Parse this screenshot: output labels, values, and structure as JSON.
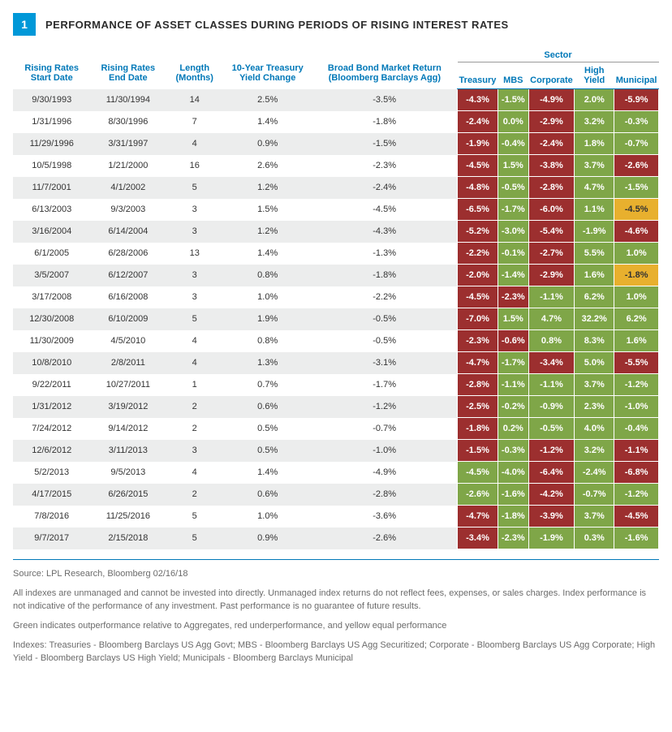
{
  "figure_number": "1",
  "title": "PERFORMANCE OF ASSET CLASSES DURING PERIODS OF RISING INTEREST RATES",
  "colors": {
    "accent": "#0098d8",
    "header_text": "#0078b8",
    "row_alt": "#eceded",
    "neg": "#9c2f2f",
    "pos": "#7fa648",
    "equal": "#e8b02e",
    "footnote": "#6b6b6b"
  },
  "headers": {
    "start": "Rising Rates Start Date",
    "end": "Rising Rates End Date",
    "length": "Length (Months)",
    "yield_change": "10-Year Treasury Yield Change",
    "bond_return": "Broad Bond Market Return (Bloomberg Barclays Agg)",
    "sector_group": "Sector",
    "sectors": [
      "Treasury",
      "MBS",
      "Corporate",
      "High Yield",
      "Municipal"
    ]
  },
  "rows": [
    {
      "start": "9/30/1993",
      "end": "11/30/1994",
      "len": "14",
      "yc": "2.5%",
      "br": "-3.5%",
      "s": [
        {
          "v": "-4.3%",
          "c": "neg"
        },
        {
          "v": "-1.5%",
          "c": "pos"
        },
        {
          "v": "-4.9%",
          "c": "neg"
        },
        {
          "v": "2.0%",
          "c": "pos"
        },
        {
          "v": "-5.9%",
          "c": "neg"
        }
      ]
    },
    {
      "start": "1/31/1996",
      "end": "8/30/1996",
      "len": "7",
      "yc": "1.4%",
      "br": "-1.8%",
      "s": [
        {
          "v": "-2.4%",
          "c": "neg"
        },
        {
          "v": "0.0%",
          "c": "pos"
        },
        {
          "v": "-2.9%",
          "c": "neg"
        },
        {
          "v": "3.2%",
          "c": "pos"
        },
        {
          "v": "-0.3%",
          "c": "pos"
        }
      ]
    },
    {
      "start": "11/29/1996",
      "end": "3/31/1997",
      "len": "4",
      "yc": "0.9%",
      "br": "-1.5%",
      "s": [
        {
          "v": "-1.9%",
          "c": "neg"
        },
        {
          "v": "-0.4%",
          "c": "pos"
        },
        {
          "v": "-2.4%",
          "c": "neg"
        },
        {
          "v": "1.8%",
          "c": "pos"
        },
        {
          "v": "-0.7%",
          "c": "pos"
        }
      ]
    },
    {
      "start": "10/5/1998",
      "end": "1/21/2000",
      "len": "16",
      "yc": "2.6%",
      "br": "-2.3%",
      "s": [
        {
          "v": "-4.5%",
          "c": "neg"
        },
        {
          "v": "1.5%",
          "c": "pos"
        },
        {
          "v": "-3.8%",
          "c": "neg"
        },
        {
          "v": "3.7%",
          "c": "pos"
        },
        {
          "v": "-2.6%",
          "c": "neg"
        }
      ]
    },
    {
      "start": "11/7/2001",
      "end": "4/1/2002",
      "len": "5",
      "yc": "1.2%",
      "br": "-2.4%",
      "s": [
        {
          "v": "-4.8%",
          "c": "neg"
        },
        {
          "v": "-0.5%",
          "c": "pos"
        },
        {
          "v": "-2.8%",
          "c": "neg"
        },
        {
          "v": "4.7%",
          "c": "pos"
        },
        {
          "v": "-1.5%",
          "c": "pos"
        }
      ]
    },
    {
      "start": "6/13/2003",
      "end": "9/3/2003",
      "len": "3",
      "yc": "1.5%",
      "br": "-4.5%",
      "s": [
        {
          "v": "-6.5%",
          "c": "neg"
        },
        {
          "v": "-1.7%",
          "c": "pos"
        },
        {
          "v": "-6.0%",
          "c": "neg"
        },
        {
          "v": "1.1%",
          "c": "pos"
        },
        {
          "v": "-4.5%",
          "c": "equal"
        }
      ]
    },
    {
      "start": "3/16/2004",
      "end": "6/14/2004",
      "len": "3",
      "yc": "1.2%",
      "br": "-4.3%",
      "s": [
        {
          "v": "-5.2%",
          "c": "neg"
        },
        {
          "v": "-3.0%",
          "c": "pos"
        },
        {
          "v": "-5.4%",
          "c": "neg"
        },
        {
          "v": "-1.9%",
          "c": "pos"
        },
        {
          "v": "-4.6%",
          "c": "neg"
        }
      ]
    },
    {
      "start": "6/1/2005",
      "end": "6/28/2006",
      "len": "13",
      "yc": "1.4%",
      "br": "-1.3%",
      "s": [
        {
          "v": "-2.2%",
          "c": "neg"
        },
        {
          "v": "-0.1%",
          "c": "pos"
        },
        {
          "v": "-2.7%",
          "c": "neg"
        },
        {
          "v": "5.5%",
          "c": "pos"
        },
        {
          "v": "1.0%",
          "c": "pos"
        }
      ]
    },
    {
      "start": "3/5/2007",
      "end": "6/12/2007",
      "len": "3",
      "yc": "0.8%",
      "br": "-1.8%",
      "s": [
        {
          "v": "-2.0%",
          "c": "neg"
        },
        {
          "v": "-1.4%",
          "c": "pos"
        },
        {
          "v": "-2.9%",
          "c": "neg"
        },
        {
          "v": "1.6%",
          "c": "pos"
        },
        {
          "v": "-1.8%",
          "c": "equal"
        }
      ]
    },
    {
      "start": "3/17/2008",
      "end": "6/16/2008",
      "len": "3",
      "yc": "1.0%",
      "br": "-2.2%",
      "s": [
        {
          "v": "-4.5%",
          "c": "neg"
        },
        {
          "v": "-2.3%",
          "c": "neg"
        },
        {
          "v": "-1.1%",
          "c": "pos"
        },
        {
          "v": "6.2%",
          "c": "pos"
        },
        {
          "v": "1.0%",
          "c": "pos"
        }
      ]
    },
    {
      "start": "12/30/2008",
      "end": "6/10/2009",
      "len": "5",
      "yc": "1.9%",
      "br": "-0.5%",
      "s": [
        {
          "v": "-7.0%",
          "c": "neg"
        },
        {
          "v": "1.5%",
          "c": "pos"
        },
        {
          "v": "4.7%",
          "c": "pos"
        },
        {
          "v": "32.2%",
          "c": "pos"
        },
        {
          "v": "6.2%",
          "c": "pos"
        }
      ]
    },
    {
      "start": "11/30/2009",
      "end": "4/5/2010",
      "len": "4",
      "yc": "0.8%",
      "br": "-0.5%",
      "s": [
        {
          "v": "-2.3%",
          "c": "neg"
        },
        {
          "v": "-0.6%",
          "c": "neg"
        },
        {
          "v": "0.8%",
          "c": "pos"
        },
        {
          "v": "8.3%",
          "c": "pos"
        },
        {
          "v": "1.6%",
          "c": "pos"
        }
      ]
    },
    {
      "start": "10/8/2010",
      "end": "2/8/2011",
      "len": "4",
      "yc": "1.3%",
      "br": "-3.1%",
      "s": [
        {
          "v": "-4.7%",
          "c": "neg"
        },
        {
          "v": "-1.7%",
          "c": "pos"
        },
        {
          "v": "-3.4%",
          "c": "neg"
        },
        {
          "v": "5.0%",
          "c": "pos"
        },
        {
          "v": "-5.5%",
          "c": "neg"
        }
      ]
    },
    {
      "start": "9/22/2011",
      "end": "10/27/2011",
      "len": "1",
      "yc": "0.7%",
      "br": "-1.7%",
      "s": [
        {
          "v": "-2.8%",
          "c": "neg"
        },
        {
          "v": "-1.1%",
          "c": "pos"
        },
        {
          "v": "-1.1%",
          "c": "pos"
        },
        {
          "v": "3.7%",
          "c": "pos"
        },
        {
          "v": "-1.2%",
          "c": "pos"
        }
      ]
    },
    {
      "start": "1/31/2012",
      "end": "3/19/2012",
      "len": "2",
      "yc": "0.6%",
      "br": "-1.2%",
      "s": [
        {
          "v": "-2.5%",
          "c": "neg"
        },
        {
          "v": "-0.2%",
          "c": "pos"
        },
        {
          "v": "-0.9%",
          "c": "pos"
        },
        {
          "v": "2.3%",
          "c": "pos"
        },
        {
          "v": "-1.0%",
          "c": "pos"
        }
      ]
    },
    {
      "start": "7/24/2012",
      "end": "9/14/2012",
      "len": "2",
      "yc": "0.5%",
      "br": "-0.7%",
      "s": [
        {
          "v": "-1.8%",
          "c": "neg"
        },
        {
          "v": "0.2%",
          "c": "pos"
        },
        {
          "v": "-0.5%",
          "c": "pos"
        },
        {
          "v": "4.0%",
          "c": "pos"
        },
        {
          "v": "-0.4%",
          "c": "pos"
        }
      ]
    },
    {
      "start": "12/6/2012",
      "end": "3/11/2013",
      "len": "3",
      "yc": "0.5%",
      "br": "-1.0%",
      "s": [
        {
          "v": "-1.5%",
          "c": "neg"
        },
        {
          "v": "-0.3%",
          "c": "pos"
        },
        {
          "v": "-1.2%",
          "c": "neg"
        },
        {
          "v": "3.2%",
          "c": "pos"
        },
        {
          "v": "-1.1%",
          "c": "neg"
        }
      ]
    },
    {
      "start": "5/2/2013",
      "end": "9/5/2013",
      "len": "4",
      "yc": "1.4%",
      "br": "-4.9%",
      "s": [
        {
          "v": "-4.5%",
          "c": "pos"
        },
        {
          "v": "-4.0%",
          "c": "pos"
        },
        {
          "v": "-6.4%",
          "c": "neg"
        },
        {
          "v": "-2.4%",
          "c": "pos"
        },
        {
          "v": "-6.8%",
          "c": "neg"
        }
      ]
    },
    {
      "start": "4/17/2015",
      "end": "6/26/2015",
      "len": "2",
      "yc": "0.6%",
      "br": "-2.8%",
      "s": [
        {
          "v": "-2.6%",
          "c": "pos"
        },
        {
          "v": "-1.6%",
          "c": "pos"
        },
        {
          "v": "-4.2%",
          "c": "neg"
        },
        {
          "v": "-0.7%",
          "c": "pos"
        },
        {
          "v": "-1.2%",
          "c": "pos"
        }
      ]
    },
    {
      "start": "7/8/2016",
      "end": "11/25/2016",
      "len": "5",
      "yc": "1.0%",
      "br": "-3.6%",
      "s": [
        {
          "v": "-4.7%",
          "c": "neg"
        },
        {
          "v": "-1.8%",
          "c": "pos"
        },
        {
          "v": "-3.9%",
          "c": "neg"
        },
        {
          "v": "3.7%",
          "c": "pos"
        },
        {
          "v": "-4.5%",
          "c": "neg"
        }
      ]
    },
    {
      "start": "9/7/2017",
      "end": "2/15/2018",
      "len": "5",
      "yc": "0.9%",
      "br": "-2.6%",
      "s": [
        {
          "v": "-3.4%",
          "c": "neg"
        },
        {
          "v": "-2.3%",
          "c": "pos"
        },
        {
          "v": "-1.9%",
          "c": "pos"
        },
        {
          "v": "0.3%",
          "c": "pos"
        },
        {
          "v": "-1.6%",
          "c": "pos"
        }
      ]
    }
  ],
  "footnotes": [
    "Source: LPL Research, Bloomberg   02/16/18",
    "All indexes are unmanaged and cannot be invested into directly. Unmanaged index returns do not reflect fees, expenses, or sales charges. Index performance is not indicative of the performance of any investment. Past performance is no guarantee of future results.",
    "Green indicates outperformance relative to Aggregates, red underperformance, and yellow equal performance",
    "Indexes: Treasuries - Bloomberg Barclays US Agg Govt; MBS - Bloomberg Barclays US Agg Securitized; Corporate - Bloomberg Barclays US Agg Corporate; High Yield - Bloomberg Barclays US High Yield; Municipals - Bloomberg Barclays Municipal"
  ]
}
